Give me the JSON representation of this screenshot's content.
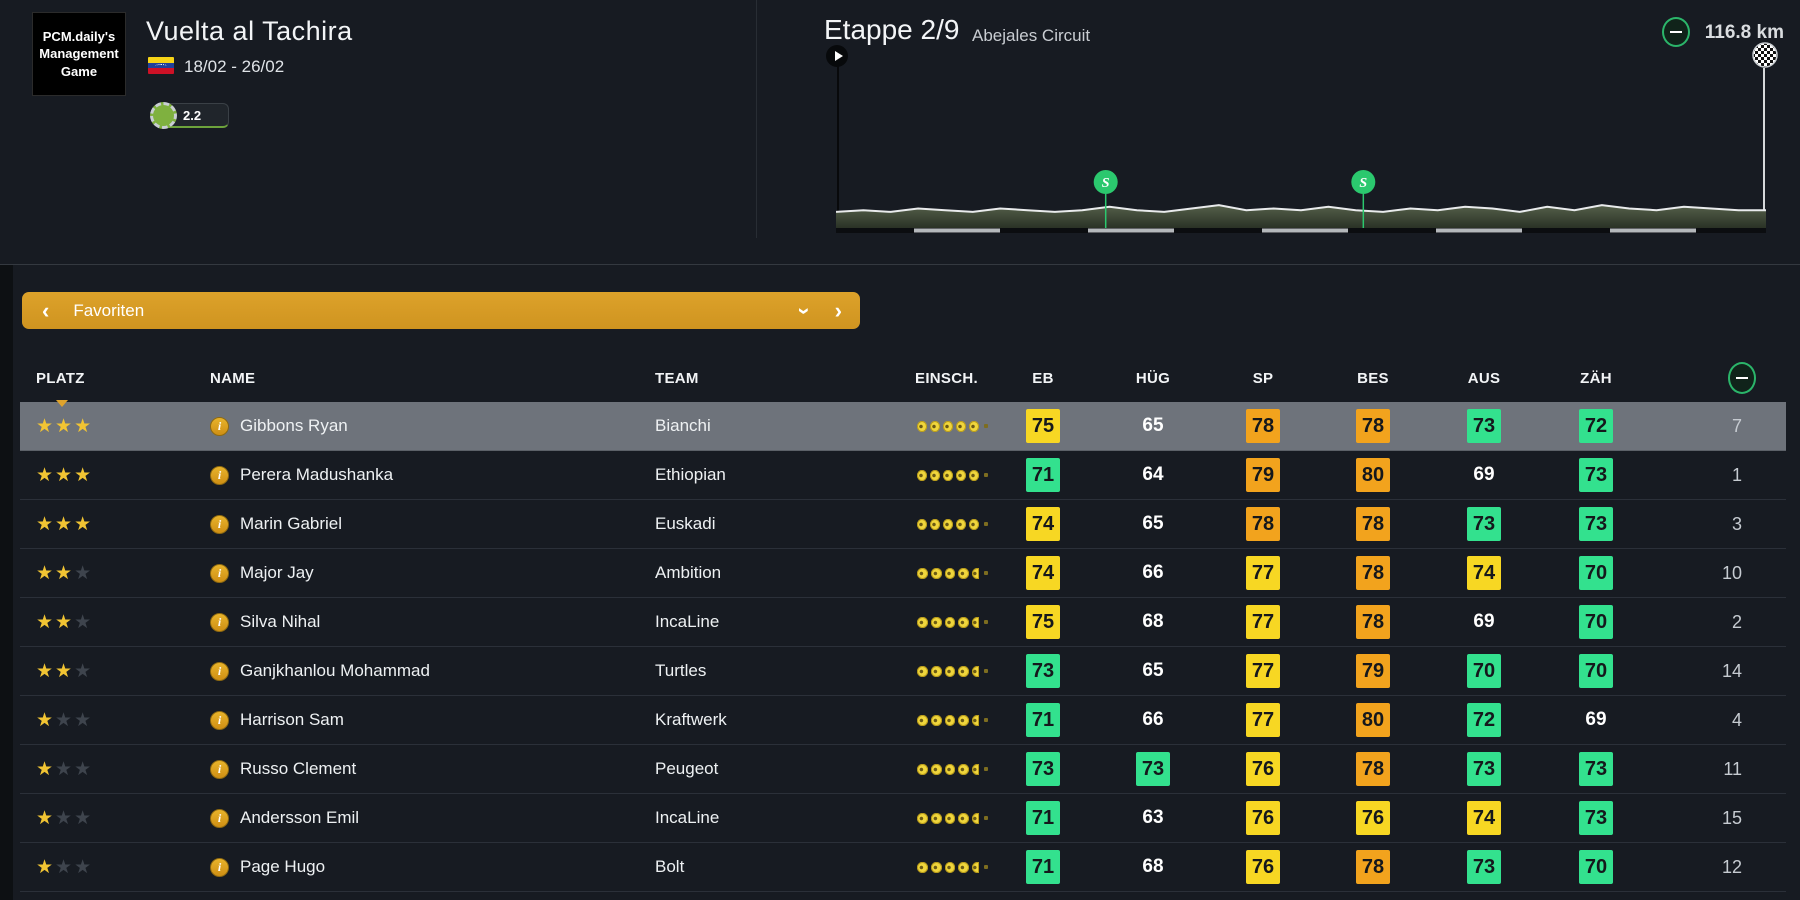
{
  "header": {
    "logo_lines": [
      "PCM.daily's",
      "Management",
      "Game"
    ],
    "race_title": "Vuelta al Tachira",
    "race_country": "venezuela",
    "race_dates": "18/02 - 26/02",
    "race_category": "2.2",
    "stage_label": "Etappe 2/9",
    "stage_name": "Abejales Circuit",
    "stage_distance": "116.8 km"
  },
  "favorites_bar": {
    "label": "Favoriten"
  },
  "profile": {
    "sprint_positions": [
      0.29,
      0.567
    ],
    "elev_bumps": [
      3,
      4,
      3,
      5,
      4,
      3,
      5,
      4,
      3,
      4,
      6,
      4,
      3,
      5,
      7,
      4,
      5,
      4,
      6,
      4,
      3,
      5,
      4,
      6,
      5,
      3,
      6,
      4,
      7,
      5,
      4,
      6,
      5,
      4,
      4
    ]
  },
  "colors": {
    "background": "#171b22",
    "accent_amber": "#d89b25",
    "badge_yellow": "#f7d723",
    "badge_orange": "#f2a31d",
    "badge_green": "#33e18e",
    "sprint_green": "#2bc86e",
    "selected_row": "#6e737b",
    "star_gold": "#f1c433"
  },
  "table": {
    "headers": {
      "platz": "PLATZ",
      "name": "NAME",
      "team": "TEAM",
      "einsch": "EINSCH.",
      "eb": "EB",
      "hug": "HÜG",
      "sp": "SP",
      "bes": "BES",
      "aus": "AUS",
      "zah": "ZÄH"
    },
    "rows": [
      {
        "stars": 3,
        "name": "Gibbons Ryan",
        "team": "Bianchi",
        "dots": 5,
        "selected": true,
        "stats": [
          {
            "v": 75,
            "c": "yellow"
          },
          {
            "v": 65,
            "c": "none"
          },
          {
            "v": 78,
            "c": "orange"
          },
          {
            "v": 78,
            "c": "orange"
          },
          {
            "v": 73,
            "c": "green"
          },
          {
            "v": 72,
            "c": "green"
          }
        ],
        "pos": 7
      },
      {
        "stars": 3,
        "name": "Perera Madushanka",
        "team": "Ethiopian",
        "dots": 5,
        "selected": false,
        "stats": [
          {
            "v": 71,
            "c": "green"
          },
          {
            "v": 64,
            "c": "none"
          },
          {
            "v": 79,
            "c": "orange"
          },
          {
            "v": 80,
            "c": "orange"
          },
          {
            "v": 69,
            "c": "none"
          },
          {
            "v": 73,
            "c": "green"
          }
        ],
        "pos": 1
      },
      {
        "stars": 3,
        "name": "Marin Gabriel",
        "team": "Euskadi",
        "dots": 5,
        "selected": false,
        "stats": [
          {
            "v": 74,
            "c": "yellow"
          },
          {
            "v": 65,
            "c": "none"
          },
          {
            "v": 78,
            "c": "orange"
          },
          {
            "v": 78,
            "c": "orange"
          },
          {
            "v": 73,
            "c": "green"
          },
          {
            "v": 73,
            "c": "green"
          }
        ],
        "pos": 3
      },
      {
        "stars": 2,
        "name": "Major Jay",
        "team": "Ambition",
        "dots": 4.5,
        "selected": false,
        "stats": [
          {
            "v": 74,
            "c": "yellow"
          },
          {
            "v": 66,
            "c": "none"
          },
          {
            "v": 77,
            "c": "yellow"
          },
          {
            "v": 78,
            "c": "orange"
          },
          {
            "v": 74,
            "c": "yellow"
          },
          {
            "v": 70,
            "c": "green"
          }
        ],
        "pos": 10
      },
      {
        "stars": 2,
        "name": "Silva Nihal",
        "team": "IncaLine",
        "dots": 4.5,
        "selected": false,
        "stats": [
          {
            "v": 75,
            "c": "yellow"
          },
          {
            "v": 68,
            "c": "none"
          },
          {
            "v": 77,
            "c": "yellow"
          },
          {
            "v": 78,
            "c": "orange"
          },
          {
            "v": 69,
            "c": "none"
          },
          {
            "v": 70,
            "c": "green"
          }
        ],
        "pos": 2
      },
      {
        "stars": 2,
        "name": "Ganjkhanlou Mohammad",
        "team": "Turtles",
        "dots": 4.5,
        "selected": false,
        "stats": [
          {
            "v": 73,
            "c": "green"
          },
          {
            "v": 65,
            "c": "none"
          },
          {
            "v": 77,
            "c": "yellow"
          },
          {
            "v": 79,
            "c": "orange"
          },
          {
            "v": 70,
            "c": "green"
          },
          {
            "v": 70,
            "c": "green"
          }
        ],
        "pos": 14
      },
      {
        "stars": 1,
        "name": "Harrison Sam",
        "team": "Kraftwerk",
        "dots": 4.5,
        "selected": false,
        "stats": [
          {
            "v": 71,
            "c": "green"
          },
          {
            "v": 66,
            "c": "none"
          },
          {
            "v": 77,
            "c": "yellow"
          },
          {
            "v": 80,
            "c": "orange"
          },
          {
            "v": 72,
            "c": "green"
          },
          {
            "v": 69,
            "c": "none"
          }
        ],
        "pos": 4
      },
      {
        "stars": 1,
        "name": "Russo Clement",
        "team": "Peugeot",
        "dots": 4.5,
        "selected": false,
        "stats": [
          {
            "v": 73,
            "c": "green"
          },
          {
            "v": 73,
            "c": "green"
          },
          {
            "v": 76,
            "c": "yellow"
          },
          {
            "v": 78,
            "c": "orange"
          },
          {
            "v": 73,
            "c": "green"
          },
          {
            "v": 73,
            "c": "green"
          }
        ],
        "pos": 11
      },
      {
        "stars": 1,
        "name": "Andersson Emil",
        "team": "IncaLine",
        "dots": 4.5,
        "selected": false,
        "stats": [
          {
            "v": 71,
            "c": "green"
          },
          {
            "v": 63,
            "c": "none"
          },
          {
            "v": 76,
            "c": "yellow"
          },
          {
            "v": 76,
            "c": "yellow"
          },
          {
            "v": 74,
            "c": "yellow"
          },
          {
            "v": 73,
            "c": "green"
          }
        ],
        "pos": 15
      },
      {
        "stars": 1,
        "name": "Page Hugo",
        "team": "Bolt",
        "dots": 4.5,
        "selected": false,
        "stats": [
          {
            "v": 71,
            "c": "green"
          },
          {
            "v": 68,
            "c": "none"
          },
          {
            "v": 76,
            "c": "yellow"
          },
          {
            "v": 78,
            "c": "orange"
          },
          {
            "v": 73,
            "c": "green"
          },
          {
            "v": 70,
            "c": "green"
          }
        ],
        "pos": 12
      }
    ]
  }
}
